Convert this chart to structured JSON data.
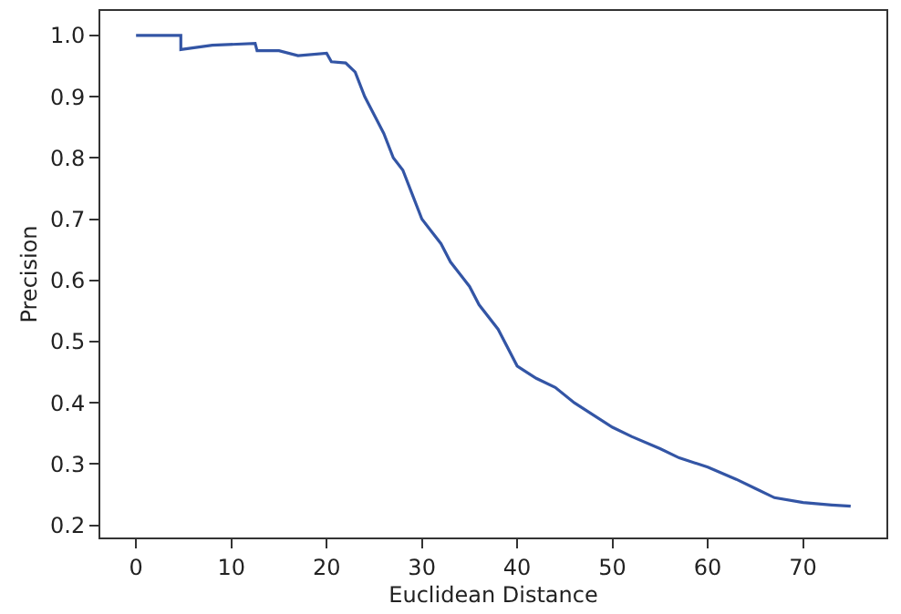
{
  "chart_data": {
    "type": "line",
    "xlabel": "Euclidean Distance",
    "ylabel": "Precision",
    "xlim": [
      -3.75,
      78.75
    ],
    "xticks": [
      0,
      10,
      20,
      30,
      40,
      50,
      60,
      70
    ],
    "ylim": [
      0.18,
      1.04
    ],
    "yticks": [
      0.2,
      0.3,
      0.4,
      0.5,
      0.6,
      0.7,
      0.8,
      0.9,
      {
        "value": 1.0,
        "label": "1.0"
      }
    ],
    "legend": false,
    "marker": "none",
    "line_style": "solid",
    "x": [
      0,
      4.7,
      4.7,
      8,
      12.5,
      12.7,
      15,
      17,
      20,
      20.5,
      22,
      23,
      24,
      25,
      26,
      27,
      28,
      29,
      30,
      31,
      32,
      33,
      34,
      35,
      36,
      38,
      40,
      41,
      42,
      44,
      46,
      48,
      50,
      52,
      55,
      57,
      60,
      63,
      65,
      67,
      70,
      73,
      75
    ],
    "series": [
      {
        "color": "#3355a5",
        "values": [
          1.0,
          1.0,
          0.977,
          0.984,
          0.987,
          0.975,
          0.975,
          0.967,
          0.971,
          0.957,
          0.955,
          0.94,
          0.9,
          0.87,
          0.84,
          0.8,
          0.78,
          0.74,
          0.7,
          0.68,
          0.66,
          0.63,
          0.61,
          0.59,
          0.56,
          0.52,
          0.46,
          0.45,
          0.44,
          0.425,
          0.4,
          0.38,
          0.36,
          0.345,
          0.325,
          0.31,
          0.295,
          0.275,
          0.26,
          0.245,
          0.237,
          0.233,
          0.231
        ]
      }
    ]
  }
}
